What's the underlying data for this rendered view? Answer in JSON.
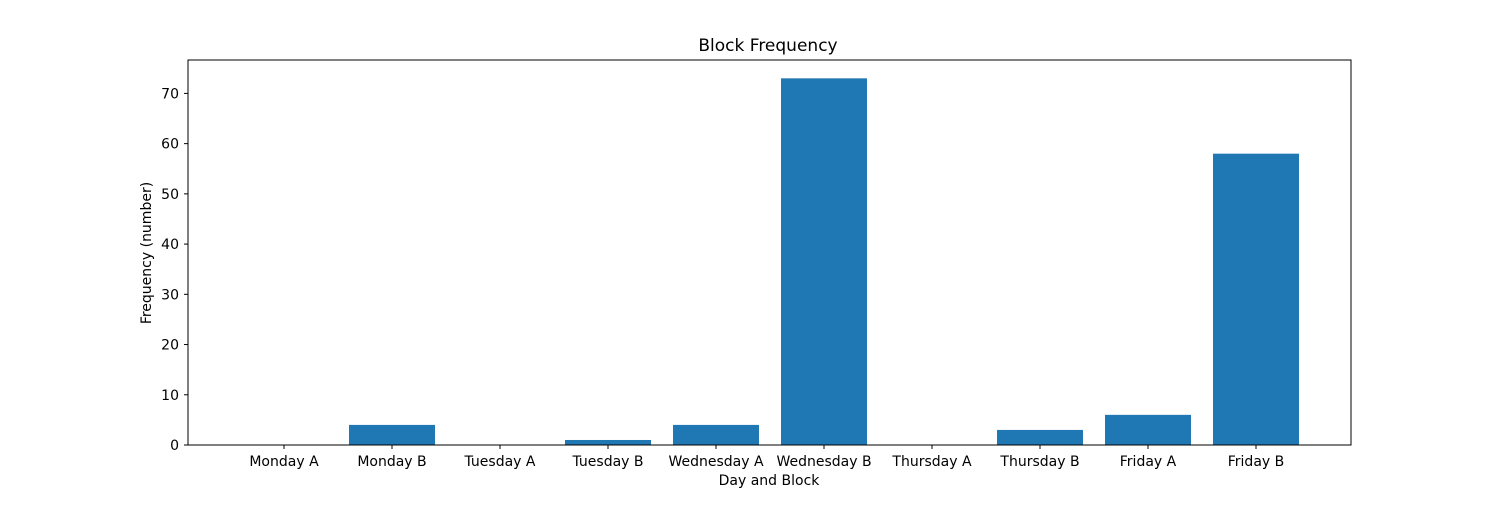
{
  "chart_data": {
    "type": "bar",
    "title": "Block Frequency",
    "xlabel": "Day and Block",
    "ylabel": "Frequency (number)",
    "categories": [
      "Monday A",
      "Monday B",
      "Tuesday A",
      "Tuesday B",
      "Wednesday A",
      "Wednesday B",
      "Thursday A",
      "Thursday B",
      "Friday A",
      "Friday B"
    ],
    "values": [
      0,
      4,
      0,
      1,
      4,
      73,
      0,
      3,
      6,
      58
    ],
    "ylim": [
      0,
      76.65
    ],
    "yticks": [
      0,
      10,
      20,
      30,
      40,
      50,
      60,
      70
    ],
    "bar_color": "#1f77b4",
    "grid": false,
    "legend": false
  }
}
